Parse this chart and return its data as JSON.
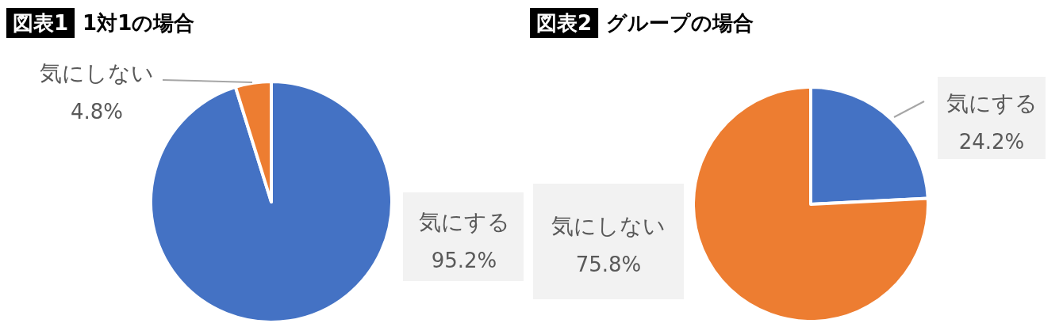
{
  "chart_data": [
    {
      "type": "pie",
      "title": "図表1",
      "subtitle": "1対1の場合",
      "categories": [
        "気にする",
        "気にしない"
      ],
      "values": [
        95.2,
        4.8
      ],
      "colors": [
        "#4472c4",
        "#ed7d31"
      ],
      "value_labels": [
        "95.2%",
        "4.8%"
      ]
    },
    {
      "type": "pie",
      "title": "図表2",
      "subtitle": "グループの場合",
      "categories": [
        "気にする",
        "気にしない"
      ],
      "values": [
        24.2,
        75.8
      ],
      "colors": [
        "#4472c4",
        "#ed7d31"
      ],
      "value_labels": [
        "24.2%",
        "75.8%"
      ]
    }
  ]
}
